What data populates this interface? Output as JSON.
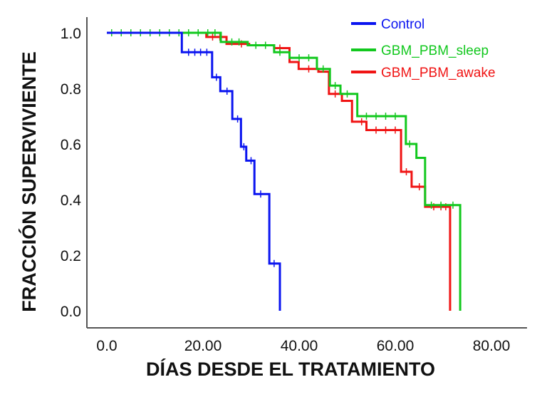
{
  "chart_data": {
    "type": "line",
    "step": true,
    "xlabel": "DÍAS DESDE EL TRATAMIENTO",
    "ylabel": "FRACCIÓN SUPERVIVIENTE",
    "xlim": [
      0,
      80
    ],
    "ylim": [
      0,
      1
    ],
    "xticks": [
      "0.0",
      "20.00",
      "40.00",
      "60.00",
      "80.00"
    ],
    "xtick_values": [
      0,
      20,
      40,
      60,
      80
    ],
    "yticks": [
      "0.0",
      "0.2",
      "0.4",
      "0.6",
      "0.8",
      "1.0"
    ],
    "ytick_values": [
      0,
      0.2,
      0.4,
      0.6,
      0.8,
      1.0
    ],
    "grid": false,
    "legend_position": "top-right",
    "series": [
      {
        "name": "Control",
        "color": "#0a14f0",
        "x": [
          0,
          15.6,
          21.9,
          23.6,
          26.1,
          27.9,
          29.0,
          30.7,
          33.8,
          36.0
        ],
        "y": [
          1.0,
          0.93,
          0.84,
          0.79,
          0.69,
          0.59,
          0.54,
          0.42,
          0.17,
          0.0
        ],
        "censored": [
          [
            17,
            0.93
          ],
          [
            18.3,
            0.93
          ],
          [
            19.5,
            0.93
          ],
          [
            20.8,
            0.93
          ],
          [
            22.8,
            0.84
          ],
          [
            25,
            0.79
          ],
          [
            27.2,
            0.69
          ],
          [
            28.5,
            0.59
          ],
          [
            30,
            0.54
          ],
          [
            32,
            0.42
          ],
          [
            34.8,
            0.17
          ]
        ]
      },
      {
        "name": "GBM_PBM_sleep",
        "color": "#12c81e",
        "x": [
          0,
          23.7,
          29.3,
          34.8,
          38.0,
          43.7,
          46.4,
          48.6,
          52.1,
          62.2,
          64.4,
          66.2,
          73.5
        ],
        "y": [
          1.0,
          0.967,
          0.955,
          0.93,
          0.91,
          0.87,
          0.81,
          0.78,
          0.7,
          0.6,
          0.55,
          0.38,
          0.0
        ],
        "censored": [
          [
            1,
            1
          ],
          [
            3,
            1
          ],
          [
            5,
            1
          ],
          [
            7,
            1
          ],
          [
            9,
            1
          ],
          [
            11,
            1
          ],
          [
            13,
            1
          ],
          [
            15,
            1
          ],
          [
            17,
            1
          ],
          [
            19,
            1
          ],
          [
            21,
            1
          ],
          [
            22.5,
            1
          ],
          [
            26,
            0.967
          ],
          [
            27.5,
            0.967
          ],
          [
            31,
            0.955
          ],
          [
            33,
            0.955
          ],
          [
            36,
            0.93
          ],
          [
            40,
            0.91
          ],
          [
            42,
            0.91
          ],
          [
            45,
            0.87
          ],
          [
            47.5,
            0.81
          ],
          [
            50,
            0.78
          ],
          [
            54,
            0.7
          ],
          [
            56,
            0.7
          ],
          [
            58,
            0.7
          ],
          [
            60,
            0.7
          ],
          [
            63,
            0.6
          ],
          [
            67.5,
            0.38
          ],
          [
            69.5,
            0.38
          ],
          [
            72,
            0.38
          ]
        ]
      },
      {
        "name": "GBM_PBM_awake",
        "color": "#f01414",
        "x": [
          0,
          20.7,
          24.9,
          29.6,
          34.8,
          38.0,
          39.9,
          44.0,
          46.2,
          48.9,
          51.0,
          54.0,
          61.2,
          63.4,
          66.2,
          71.4
        ],
        "y": [
          1.0,
          0.985,
          0.96,
          0.955,
          0.945,
          0.895,
          0.87,
          0.86,
          0.78,
          0.755,
          0.68,
          0.65,
          0.5,
          0.446,
          0.374,
          0.0
        ],
        "censored": [
          [
            22,
            0.985
          ],
          [
            23.5,
            0.985
          ],
          [
            28,
            0.96
          ],
          [
            33,
            0.955
          ],
          [
            36,
            0.945
          ],
          [
            42,
            0.87
          ],
          [
            47.5,
            0.78
          ],
          [
            53,
            0.68
          ],
          [
            56,
            0.65
          ],
          [
            58,
            0.65
          ],
          [
            60,
            0.65
          ],
          [
            62.3,
            0.5
          ],
          [
            65,
            0.446
          ],
          [
            68,
            0.374
          ],
          [
            69.5,
            0.374
          ],
          [
            70.5,
            0.374
          ]
        ]
      }
    ]
  }
}
